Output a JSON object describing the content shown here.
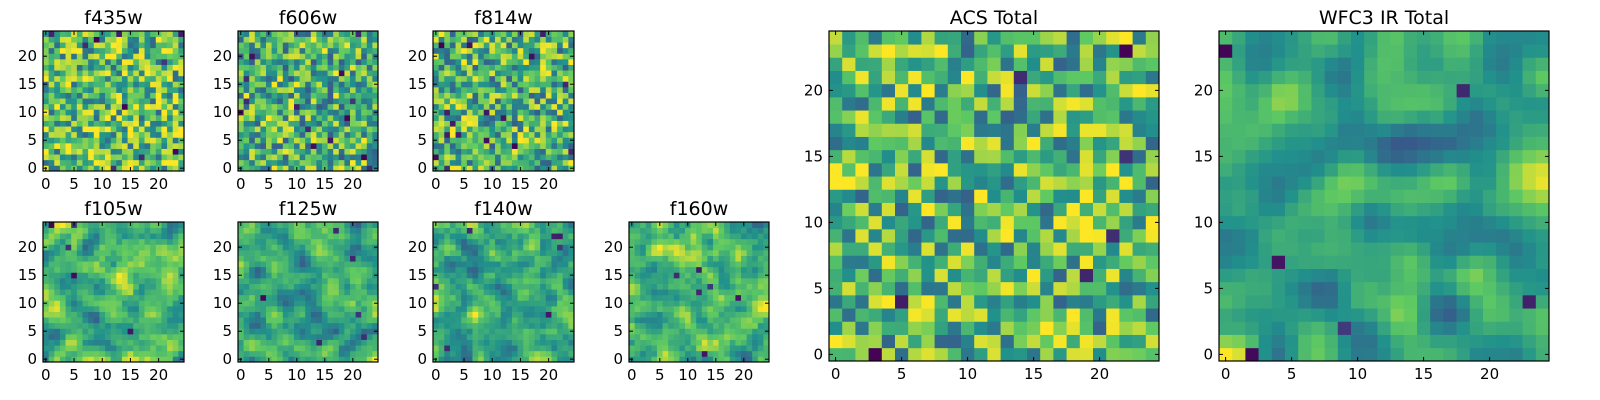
{
  "figure": {
    "colormap": "viridis",
    "colormap_stops": [
      "#440154",
      "#3b528b",
      "#21918c",
      "#5ec962",
      "#fde725"
    ]
  },
  "chart_data": [
    {
      "type": "heatmap",
      "title": "f435w",
      "grid_size": 25,
      "xticks": [
        0,
        5,
        10,
        15,
        20
      ],
      "yticks": [
        0,
        5,
        10,
        15,
        20
      ],
      "xlim": [
        0,
        24
      ],
      "ylim": [
        0,
        24
      ],
      "seed": 11,
      "bias": 0.2,
      "smooth": 0,
      "dark_cells": 10
    },
    {
      "type": "heatmap",
      "title": "f606w",
      "grid_size": 25,
      "xticks": [
        0,
        5,
        10,
        15,
        20
      ],
      "yticks": [
        0,
        5,
        10,
        15,
        20
      ],
      "xlim": [
        0,
        24
      ],
      "ylim": [
        0,
        24
      ],
      "seed": 23,
      "bias": 0.0,
      "smooth": 0,
      "dark_cells": 14
    },
    {
      "type": "heatmap",
      "title": "f814w",
      "grid_size": 25,
      "xticks": [
        0,
        5,
        10,
        15,
        20
      ],
      "yticks": [
        0,
        5,
        10,
        15,
        20
      ],
      "xlim": [
        0,
        24
      ],
      "ylim": [
        0,
        24
      ],
      "seed": 37,
      "bias": 0.05,
      "smooth": 0,
      "dark_cells": 16
    },
    {
      "type": "heatmap",
      "title": "f105w",
      "grid_size": 25,
      "xticks": [
        0,
        5,
        10,
        15,
        20
      ],
      "yticks": [
        0,
        5,
        10,
        15,
        20
      ],
      "xlim": [
        0,
        24
      ],
      "ylim": [
        0,
        24
      ],
      "seed": 41,
      "bias": 0.1,
      "smooth": 1,
      "dark_cells": 5
    },
    {
      "type": "heatmap",
      "title": "f125w",
      "grid_size": 25,
      "xticks": [
        0,
        5,
        10,
        15,
        20
      ],
      "yticks": [
        0,
        5,
        10,
        15,
        20
      ],
      "xlim": [
        0,
        24
      ],
      "ylim": [
        0,
        24
      ],
      "seed": 53,
      "bias": 0.05,
      "smooth": 1,
      "dark_cells": 6
    },
    {
      "type": "heatmap",
      "title": "f140w",
      "grid_size": 25,
      "xticks": [
        0,
        5,
        10,
        15,
        20
      ],
      "yticks": [
        0,
        5,
        10,
        15,
        20
      ],
      "xlim": [
        0,
        24
      ],
      "ylim": [
        0,
        24
      ],
      "seed": 67,
      "bias": 0.12,
      "smooth": 1,
      "dark_cells": 7
    },
    {
      "type": "heatmap",
      "title": "f160w",
      "grid_size": 25,
      "xticks": [
        0,
        5,
        10,
        15,
        20
      ],
      "yticks": [
        0,
        5,
        10,
        15,
        20
      ],
      "xlim": [
        0,
        24
      ],
      "ylim": [
        0,
        24
      ],
      "seed": 79,
      "bias": 0.05,
      "smooth": 1,
      "dark_cells": 6
    },
    {
      "type": "heatmap",
      "title": "ACS Total",
      "grid_size": 25,
      "xticks": [
        0,
        5,
        10,
        15,
        20
      ],
      "yticks": [
        0,
        5,
        10,
        15,
        20
      ],
      "xlim": [
        0,
        24
      ],
      "ylim": [
        0,
        24
      ],
      "seed": 97,
      "bias": 0.1,
      "smooth": 0,
      "dark_cells": 7
    },
    {
      "type": "heatmap",
      "title": "WFC3 IR Total",
      "grid_size": 25,
      "xticks": [
        0,
        5,
        10,
        15,
        20
      ],
      "yticks": [
        0,
        5,
        10,
        15,
        20
      ],
      "xlim": [
        0,
        24
      ],
      "ylim": [
        0,
        24
      ],
      "seed": 131,
      "bias": 0.0,
      "smooth": 2,
      "dark_cells": 6
    }
  ]
}
